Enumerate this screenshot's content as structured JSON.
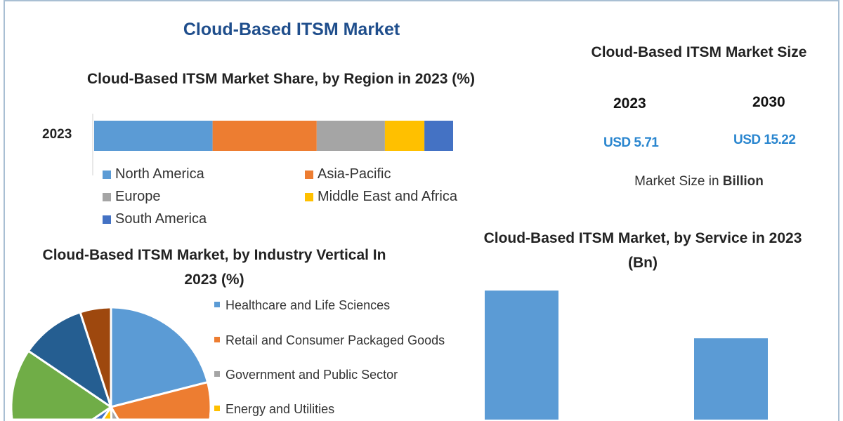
{
  "title": "Cloud-Based ITSM Market",
  "market_size": {
    "title": "Cloud-Based ITSM Market Size",
    "years": [
      "2023",
      "2030"
    ],
    "values": [
      "USD 5.71",
      "USD 15.22"
    ],
    "unit_prefix": "Market Size in ",
    "unit_bold": "Billion",
    "value_color": "#2a86cf"
  },
  "chart_data": [
    {
      "type": "bar",
      "orientation": "horizontal-stacked",
      "title": "Cloud-Based ITSM Market Share, by Region in 2023 (%)",
      "categories": [
        "2023"
      ],
      "legend_position": "bottom",
      "series": [
        {
          "name": "North America",
          "values": [
            33
          ],
          "color": "#5b9bd5"
        },
        {
          "name": "Asia-Pacific",
          "values": [
            29
          ],
          "color": "#ed7d31"
        },
        {
          "name": "Europe",
          "values": [
            19
          ],
          "color": "#a5a5a5"
        },
        {
          "name": "Middle East and Africa",
          "values": [
            11
          ],
          "color": "#ffc000"
        },
        {
          "name": "South America",
          "values": [
            8
          ],
          "color": "#4472c4"
        }
      ]
    },
    {
      "type": "pie",
      "title": "Cloud-Based ITSM Market, by Industry Vertical In 2023 (%)",
      "legend_position": "right",
      "slices": [
        {
          "name": "Healthcare and Life Sciences",
          "value": 21,
          "color": "#5b9bd5"
        },
        {
          "name": "Retail and Consumer Packaged Goods",
          "value": 20.5,
          "color": "#ed7d31"
        },
        {
          "name": "Government and Public Sector",
          "value": 8,
          "color": "#a5a5a5"
        },
        {
          "name": "Energy and Utilities",
          "value": 10,
          "color": "#ffc000"
        },
        {
          "value": 6,
          "color": "#4472c4"
        },
        {
          "value": 19,
          "color": "#70ad47"
        },
        {
          "value": 10.5,
          "color": "#255e91"
        },
        {
          "value": 5,
          "color": "#9e480e"
        }
      ]
    },
    {
      "type": "bar",
      "title": "Cloud-Based ITSM Market, by Service in 2023 (Bn)",
      "values": [
        3.42,
        2.29
      ],
      "color": "#5b9bd5"
    }
  ]
}
